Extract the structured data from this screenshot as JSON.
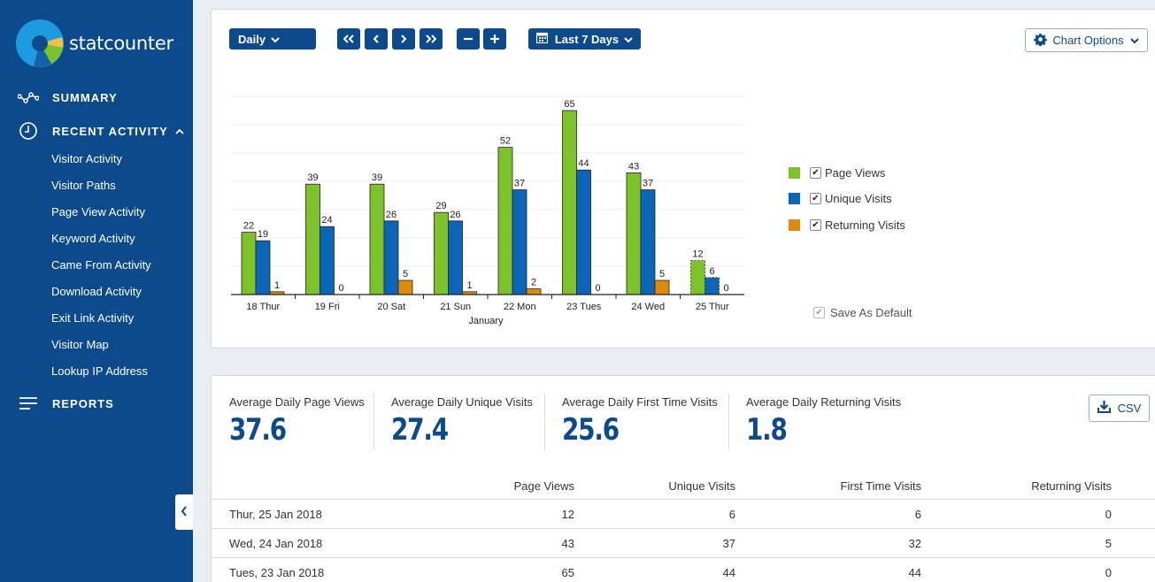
{
  "brand": {
    "name": "statcounter"
  },
  "sidebar": {
    "summary_label": "SUMMARY",
    "recent_activity_label": "RECENT ACTIVITY",
    "reports_label": "REPORTS",
    "items": [
      "Visitor Activity",
      "Visitor Paths",
      "Page View Activity",
      "Keyword Activity",
      "Came From Activity",
      "Download Activity",
      "Exit Link Activity",
      "Visitor Map",
      "Lookup IP Address"
    ]
  },
  "toolbar": {
    "granularity": "Daily",
    "date_range": "Last 7 Days",
    "chart_options_label": "Chart Options"
  },
  "colors": {
    "page_views": "#7dc22a",
    "unique_visits": "#0b66b8",
    "returning_visits": "#e08a0b",
    "brand": "#0d4a8c"
  },
  "legend": {
    "page_views": "Page Views",
    "unique_visits": "Unique Visits",
    "returning_visits": "Returning Visits",
    "save_default": "Save As Default"
  },
  "chart_data": {
    "type": "bar",
    "xlabel": "January",
    "categories": [
      "18 Thur",
      "19 Fri",
      "20 Sat",
      "21 Sun",
      "22 Mon",
      "23 Tues",
      "24 Wed",
      "25 Thur"
    ],
    "series": [
      {
        "name": "Page Views",
        "values": [
          22,
          39,
          39,
          29,
          52,
          65,
          43,
          12
        ]
      },
      {
        "name": "Unique Visits",
        "values": [
          19,
          24,
          26,
          26,
          37,
          44,
          37,
          6
        ]
      },
      {
        "name": "Returning Visits",
        "values": [
          1,
          0,
          5,
          1,
          2,
          0,
          5,
          0
        ]
      }
    ],
    "ylim": [
      0,
      70
    ],
    "grid": true
  },
  "stats": {
    "page_views_label": "Average Daily Page Views",
    "page_views_value": "37.6",
    "unique_label": "Average Daily Unique Visits",
    "unique_value": "27.4",
    "first_time_label": "Average Daily First Time Visits",
    "first_time_value": "25.6",
    "returning_label": "Average Daily Returning Visits",
    "returning_value": "1.8",
    "csv_label": "CSV"
  },
  "table": {
    "headers": [
      "Page Views",
      "Unique Visits",
      "First Time Visits",
      "Returning Visits"
    ],
    "rows": [
      {
        "date": "Thur, 25 Jan 2018",
        "page_views": "12",
        "unique": "6",
        "first_time": "6",
        "returning": "0"
      },
      {
        "date": "Wed, 24 Jan 2018",
        "page_views": "43",
        "unique": "37",
        "first_time": "32",
        "returning": "5"
      },
      {
        "date": "Tues, 23 Jan 2018",
        "page_views": "65",
        "unique": "44",
        "first_time": "44",
        "returning": "0"
      }
    ]
  }
}
